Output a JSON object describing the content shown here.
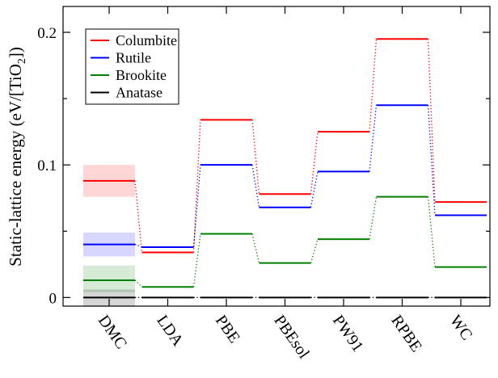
{
  "chart_data": {
    "type": "line",
    "title": "",
    "xlabel": "",
    "ylabel": "Static-lattice energy (eV/[TiO",
    "ylabel_subscript": "2",
    "ylabel_suffix": "])",
    "ylim": [
      -0.0065,
      0.2195
    ],
    "yticks": [
      0,
      0.1,
      0.2
    ],
    "ytick_labels": [
      "0",
      "0.1",
      "0.2"
    ],
    "categories": [
      "DMC",
      "LDA",
      "PBE",
      "PBEsol",
      "PW91",
      "RPBE",
      "WC"
    ],
    "series": [
      {
        "name": "Columbite",
        "color": "#ff0000",
        "values": [
          0.088,
          0.034,
          0.134,
          0.078,
          0.125,
          0.195,
          0.072
        ]
      },
      {
        "name": "Rutile",
        "color": "#0000ff",
        "values": [
          0.04,
          0.038,
          0.1,
          0.068,
          0.095,
          0.145,
          0.062
        ]
      },
      {
        "name": "Brookite",
        "color": "#008000",
        "values": [
          0.013,
          0.008,
          0.048,
          0.026,
          0.044,
          0.076,
          0.023
        ]
      },
      {
        "name": "Anatase",
        "color": "#000000",
        "values": [
          0,
          0,
          0,
          0,
          0,
          0,
          0
        ]
      }
    ],
    "dmc_error_bands": [
      {
        "series": "Columbite",
        "low": 0.076,
        "high": 0.1
      },
      {
        "series": "Rutile",
        "low": 0.031,
        "high": 0.049
      },
      {
        "series": "Brookite",
        "low": 0.004,
        "high": 0.024
      },
      {
        "series": "Anatase",
        "low": -0.007,
        "high": 0.006
      }
    ],
    "legend": {
      "position": "top-left"
    },
    "grid": false
  }
}
